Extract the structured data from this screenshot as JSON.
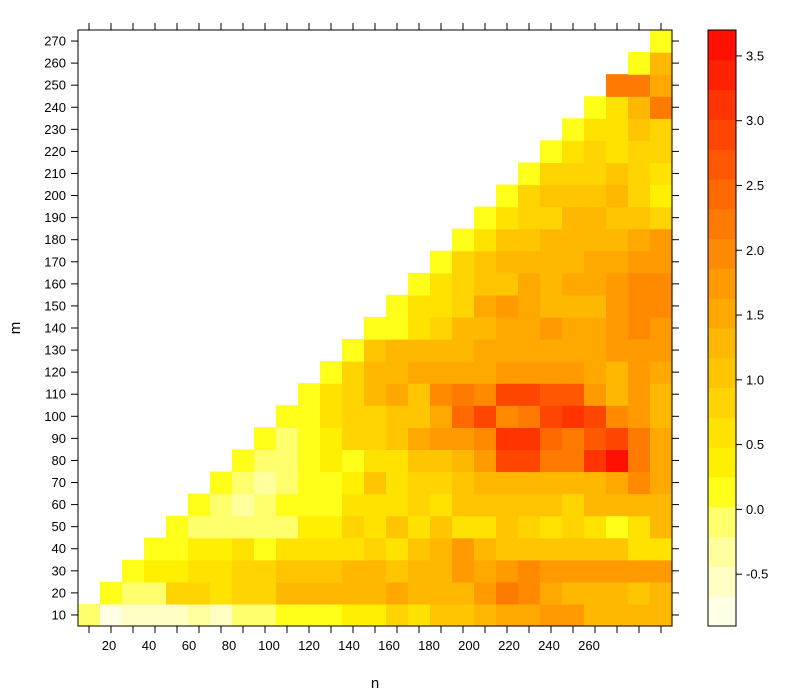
{
  "chart_data": {
    "type": "heatmap",
    "title": "",
    "xlabel": "n",
    "ylabel": "m",
    "x_start": 10,
    "x_step": 11,
    "x_count": 27,
    "y_start": 10,
    "y_step": 10,
    "y_count": 27,
    "xlim": [
      4.5,
      301.5
    ],
    "ylim": [
      5,
      275
    ],
    "x_ticks": [
      20,
      40,
      60,
      80,
      100,
      120,
      140,
      160,
      180,
      200,
      220,
      240,
      260
    ],
    "y_ticks": [
      10,
      20,
      30,
      40,
      50,
      60,
      70,
      80,
      90,
      100,
      110,
      120,
      130,
      140,
      150,
      160,
      170,
      180,
      190,
      200,
      210,
      220,
      230,
      240,
      250,
      260,
      270
    ],
    "colorbar": {
      "min": -0.9,
      "max": 3.7,
      "ticks": [
        -0.5,
        0.0,
        0.5,
        1.0,
        1.5,
        2.0,
        2.5,
        3.0,
        3.5
      ],
      "tick_labels": [
        "-0.5",
        "0.0",
        "0.5",
        "1.0",
        "1.5",
        "2.0",
        "2.5",
        "3.0",
        "3.5"
      ],
      "colors": [
        "#FFFFE6",
        "#FFFFC4",
        "#FFFF9E",
        "#FFFF6E",
        "#FFFF1A",
        "#FFF000",
        "#FFE200",
        "#FFD400",
        "#FFC600",
        "#FFB800",
        "#FFA900",
        "#FF9A00",
        "#FF8A00",
        "#FF7A00",
        "#FF6900",
        "#FF5800",
        "#FF4600",
        "#FF3400",
        "#FF2200",
        "#FF1000"
      ]
    },
    "values": [
      [
        0.0,
        -0.8,
        -0.5,
        -0.5,
        -0.5,
        -0.3,
        -0.6,
        -0.2,
        -0.1,
        0.2,
        0.2,
        0.2,
        0.3,
        0.3,
        0.9,
        0.5,
        1.0,
        1.0,
        1.3,
        1.5,
        1.5,
        1.7,
        1.7,
        1.2,
        1.2,
        1.2,
        1.2
      ],
      [
        null,
        0.1,
        -0.1,
        0.0,
        0.8,
        0.8,
        0.5,
        0.9,
        0.8,
        1.2,
        1.2,
        1.2,
        1.4,
        1.4,
        1.5,
        1.3,
        1.4,
        1.2,
        1.8,
        2.2,
        2.0,
        1.6,
        1.2,
        1.2,
        1.2,
        1.0,
        1.4
      ],
      [
        null,
        null,
        0.1,
        0.4,
        0.4,
        0.7,
        0.7,
        0.8,
        0.9,
        1.0,
        1.0,
        1.0,
        1.2,
        1.2,
        1.1,
        1.2,
        1.4,
        1.8,
        1.5,
        1.7,
        1.9,
        1.7,
        1.8,
        1.8,
        1.8,
        1.8,
        1.8
      ],
      [
        null,
        null,
        null,
        0.2,
        0.2,
        0.4,
        0.4,
        0.5,
        0.2,
        0.7,
        0.5,
        0.7,
        0.6,
        0.9,
        0.7,
        1.1,
        1.4,
        1.7,
        1.2,
        1.0,
        1.0,
        1.0,
        1.0,
        1.0,
        1.0,
        0.6,
        0.6
      ],
      [
        null,
        null,
        null,
        null,
        0.2,
        -0.1,
        -0.2,
        0.0,
        0.0,
        0.0,
        0.3,
        0.4,
        0.8,
        0.5,
        1.1,
        0.7,
        1.0,
        0.7,
        0.7,
        1.0,
        0.8,
        0.7,
        0.8,
        0.6,
        0.2,
        0.7,
        1.3
      ],
      [
        null,
        null,
        null,
        null,
        null,
        0.1,
        -0.2,
        -0.3,
        -0.2,
        0.1,
        0.1,
        0.2,
        0.6,
        0.6,
        0.7,
        0.8,
        0.7,
        1.0,
        1.0,
        1.0,
        1.0,
        1.0,
        0.9,
        1.2,
        1.3,
        1.4,
        1.4
      ],
      [
        null,
        null,
        null,
        null,
        null,
        null,
        0.1,
        -0.1,
        -0.3,
        0.0,
        0.1,
        0.1,
        0.4,
        1.0,
        0.7,
        0.8,
        0.9,
        1.0,
        1.3,
        1.3,
        1.4,
        1.4,
        1.4,
        1.4,
        1.6,
        2.0,
        1.5
      ],
      [
        null,
        null,
        null,
        null,
        null,
        null,
        null,
        0.1,
        -0.1,
        -0.1,
        0.1,
        0.3,
        0.1,
        0.7,
        0.7,
        1.0,
        1.0,
        1.3,
        1.7,
        3.0,
        3.0,
        2.2,
        2.3,
        3.2,
        3.6,
        2.2,
        1.5
      ],
      [
        null,
        null,
        null,
        null,
        null,
        null,
        null,
        null,
        0.1,
        -0.2,
        0.1,
        0.4,
        0.9,
        0.9,
        1.0,
        1.5,
        1.7,
        1.7,
        1.9,
        3.1,
        3.1,
        2.4,
        2.2,
        2.7,
        2.9,
        2.2,
        1.6
      ],
      [
        null,
        null,
        null,
        null,
        null,
        null,
        null,
        null,
        null,
        0.1,
        0.1,
        0.5,
        0.8,
        0.8,
        1.0,
        1.1,
        1.5,
        2.5,
        2.9,
        2.0,
        2.3,
        3.0,
        3.2,
        2.9,
        1.9,
        1.8,
        1.4
      ],
      [
        null,
        null,
        null,
        null,
        null,
        null,
        null,
        null,
        null,
        null,
        0.1,
        0.5,
        0.9,
        1.2,
        1.6,
        1.0,
        1.9,
        2.2,
        1.9,
        2.9,
        3.0,
        2.6,
        2.6,
        1.7,
        1.2,
        1.7,
        1.4
      ],
      [
        null,
        null,
        null,
        null,
        null,
        null,
        null,
        null,
        null,
        null,
        null,
        0.1,
        0.8,
        1.3,
        1.3,
        1.5,
        1.6,
        1.5,
        1.5,
        1.8,
        1.8,
        1.8,
        1.8,
        1.6,
        1.3,
        1.8,
        1.6
      ],
      [
        null,
        null,
        null,
        null,
        null,
        null,
        null,
        null,
        null,
        null,
        null,
        null,
        0.1,
        1.1,
        1.3,
        1.4,
        1.3,
        1.4,
        1.6,
        1.6,
        1.6,
        1.6,
        1.6,
        1.6,
        1.7,
        1.8,
        1.8
      ],
      [
        null,
        null,
        null,
        null,
        null,
        null,
        null,
        null,
        null,
        null,
        null,
        null,
        null,
        0.1,
        0.1,
        0.7,
        0.8,
        1.3,
        1.3,
        1.5,
        1.6,
        1.7,
        1.5,
        1.5,
        1.7,
        1.9,
        1.8
      ],
      [
        null,
        null,
        null,
        null,
        null,
        null,
        null,
        null,
        null,
        null,
        null,
        null,
        null,
        null,
        0.1,
        0.5,
        0.7,
        0.9,
        1.5,
        1.7,
        1.5,
        1.4,
        1.2,
        1.4,
        1.7,
        1.9,
        1.9
      ],
      [
        null,
        null,
        null,
        null,
        null,
        null,
        null,
        null,
        null,
        null,
        null,
        null,
        null,
        null,
        null,
        0.1,
        0.7,
        0.9,
        1.0,
        1.0,
        1.5,
        1.3,
        1.6,
        1.6,
        1.7,
        1.9,
        1.9
      ],
      [
        null,
        null,
        null,
        null,
        null,
        null,
        null,
        null,
        null,
        null,
        null,
        null,
        null,
        null,
        null,
        null,
        0.1,
        0.8,
        1.0,
        1.2,
        1.2,
        1.4,
        1.4,
        1.5,
        1.5,
        1.8,
        1.8
      ],
      [
        null,
        null,
        null,
        null,
        null,
        null,
        null,
        null,
        null,
        null,
        null,
        null,
        null,
        null,
        null,
        null,
        null,
        0.1,
        0.7,
        1.0,
        1.0,
        1.2,
        1.2,
        1.3,
        1.3,
        1.5,
        1.7
      ],
      [
        null,
        null,
        null,
        null,
        null,
        null,
        null,
        null,
        null,
        null,
        null,
        null,
        null,
        null,
        null,
        null,
        null,
        null,
        0.1,
        0.7,
        0.9,
        0.9,
        1.3,
        1.3,
        1.1,
        1.0,
        0.8
      ],
      [
        null,
        null,
        null,
        null,
        null,
        null,
        null,
        null,
        null,
        null,
        null,
        null,
        null,
        null,
        null,
        null,
        null,
        null,
        null,
        0.1,
        0.8,
        1.0,
        1.1,
        1.1,
        1.2,
        0.9,
        0.3
      ],
      [
        null,
        null,
        null,
        null,
        null,
        null,
        null,
        null,
        null,
        null,
        null,
        null,
        null,
        null,
        null,
        null,
        null,
        null,
        null,
        null,
        0.1,
        0.8,
        0.8,
        0.9,
        1.0,
        0.9,
        0.7
      ],
      [
        null,
        null,
        null,
        null,
        null,
        null,
        null,
        null,
        null,
        null,
        null,
        null,
        null,
        null,
        null,
        null,
        null,
        null,
        null,
        null,
        null,
        0.1,
        0.5,
        0.8,
        0.7,
        0.8,
        0.8
      ],
      [
        null,
        null,
        null,
        null,
        null,
        null,
        null,
        null,
        null,
        null,
        null,
        null,
        null,
        null,
        null,
        null,
        null,
        null,
        null,
        null,
        null,
        null,
        0.1,
        0.6,
        0.5,
        1.0,
        0.9
      ],
      [
        null,
        null,
        null,
        null,
        null,
        null,
        null,
        null,
        null,
        null,
        null,
        null,
        null,
        null,
        null,
        null,
        null,
        null,
        null,
        null,
        null,
        null,
        null,
        0.1,
        0.5,
        1.2,
        2.1
      ],
      [
        null,
        null,
        null,
        null,
        null,
        null,
        null,
        null,
        null,
        null,
        null,
        null,
        null,
        null,
        null,
        null,
        null,
        null,
        null,
        null,
        null,
        null,
        null,
        null,
        2.2,
        2.2,
        1.6
      ],
      [
        null,
        null,
        null,
        null,
        null,
        null,
        null,
        null,
        null,
        null,
        null,
        null,
        null,
        null,
        null,
        null,
        null,
        null,
        null,
        null,
        null,
        null,
        null,
        null,
        null,
        0.1,
        1.2
      ],
      [
        null,
        null,
        null,
        null,
        null,
        null,
        null,
        null,
        null,
        null,
        null,
        null,
        null,
        null,
        null,
        null,
        null,
        null,
        null,
        null,
        null,
        null,
        null,
        null,
        null,
        null,
        0.2
      ]
    ]
  }
}
